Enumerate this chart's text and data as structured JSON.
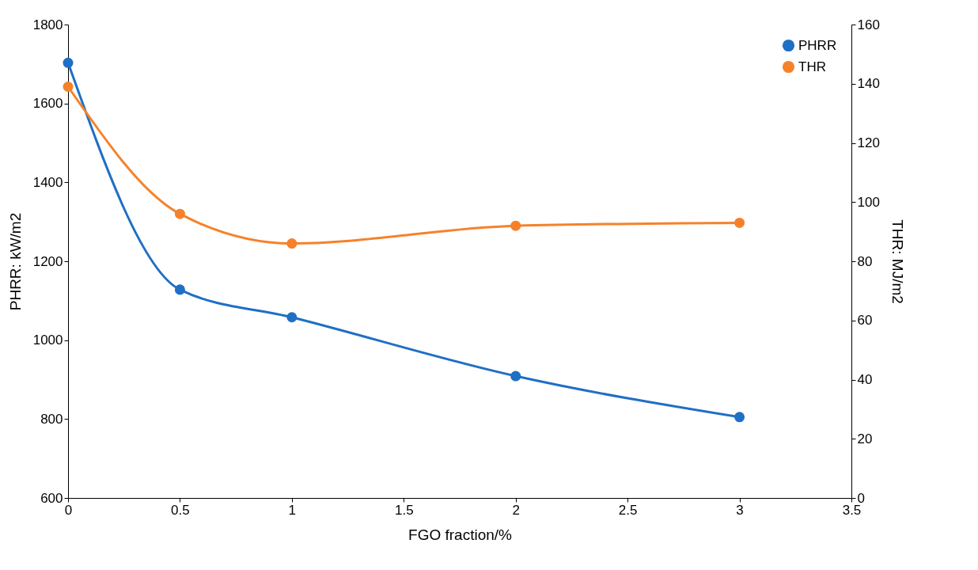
{
  "chart_data": {
    "type": "line",
    "xlabel": "FGO fraction/%",
    "ylabel": "PHRR: kW/m2",
    "y2label": "THR: MJ/m2",
    "x": [
      0,
      0.5,
      1,
      2,
      3
    ],
    "series": [
      {
        "name": "PHRR",
        "color": "#1f6fc5",
        "values": [
          1703,
          1128,
          1058,
          909,
          805
        ]
      },
      {
        "name": "THR",
        "color": "#f5822a",
        "axis": "y2",
        "values": [
          139,
          96,
          86,
          92,
          93
        ]
      }
    ],
    "xlim": [
      0,
      3.5
    ],
    "xticks": [
      0,
      0.5,
      1,
      1.5,
      2,
      2.5,
      3,
      3.5
    ],
    "ylim": [
      600,
      1800
    ],
    "yticks": [
      600,
      800,
      1000,
      1200,
      1400,
      1600,
      1800
    ],
    "y2lim": [
      0,
      160
    ],
    "y2ticks": [
      0,
      20,
      40,
      60,
      80,
      100,
      120,
      140,
      160
    ],
    "grid": false,
    "legend": "top right",
    "marker": "circle",
    "line_style": "solid"
  }
}
